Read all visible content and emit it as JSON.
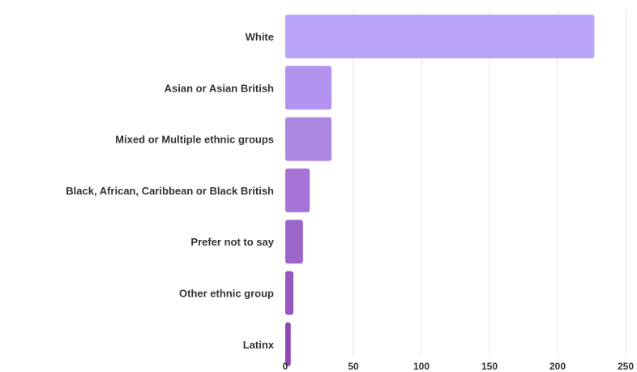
{
  "chart_data": {
    "type": "bar",
    "orientation": "horizontal",
    "categories": [
      "White",
      "Asian or Asian British",
      "Mixed or Multiple ethnic groups",
      "Black, African, Caribbean or Black British",
      "Prefer not to say",
      "Other ethnic group",
      "Latinx"
    ],
    "values": [
      227,
      34,
      34,
      18,
      13,
      6,
      4
    ],
    "xlim": [
      0,
      250
    ],
    "xticks": [
      0,
      50,
      100,
      150,
      200,
      250
    ],
    "grid": true,
    "colors": [
      "#b9a3fb",
      "#b492f0",
      "#ad87e4",
      "#a574d6",
      "#9d66cb",
      "#9657bf",
      "#8f47b6"
    ]
  }
}
